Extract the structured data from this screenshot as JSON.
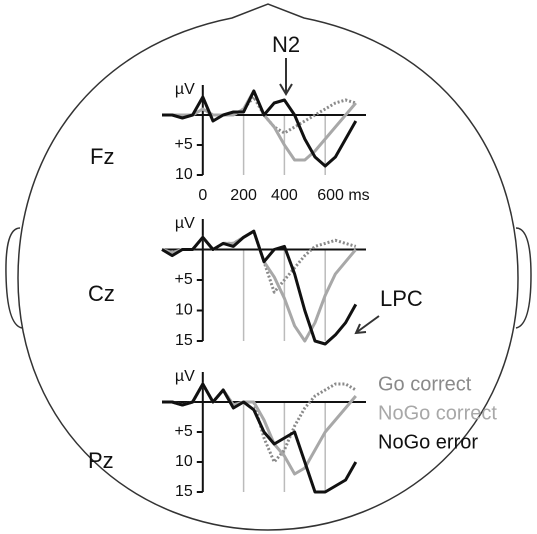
{
  "chart_data": [
    {
      "type": "line",
      "title": "Fz",
      "ylabel": "µV",
      "y_inverted": true,
      "annotation": "N2",
      "x": [
        -200,
        -150,
        -100,
        -50,
        0,
        50,
        100,
        150,
        200,
        250,
        300,
        350,
        400,
        450,
        500,
        550,
        600,
        650,
        700,
        750
      ],
      "xlim": [
        -200,
        800
      ],
      "ylim": [
        -5,
        10
      ],
      "xticks": [
        0,
        200,
        400,
        {
          "value": 600,
          "label": "600 ms"
        }
      ],
      "yticks": [
        {
          "value": 5,
          "label": "+5"
        },
        10
      ],
      "vlines": [
        200,
        400,
        600
      ],
      "series": [
        {
          "name": "Go correct",
          "color": "#8a8a8a",
          "dash": true,
          "values": [
            0,
            0,
            0,
            0,
            -1,
            0,
            0,
            0,
            -1,
            -3,
            0,
            2,
            3,
            2,
            1,
            0,
            -1,
            -2,
            -2.5,
            -2
          ]
        },
        {
          "name": "NoGo correct",
          "color": "#a8a8a8",
          "dash": false,
          "values": [
            0,
            0,
            0,
            0,
            -1,
            0,
            0,
            0,
            -1,
            -4,
            0,
            2,
            5,
            7.5,
            7.5,
            6,
            4,
            2,
            0,
            -2
          ]
        },
        {
          "name": "NoGo error",
          "color": "#111111",
          "dash": false,
          "values": [
            0,
            0,
            0.5,
            0,
            -3,
            1,
            0,
            -0.5,
            -0.5,
            -4,
            0,
            -2,
            -2.5,
            0,
            4,
            7,
            8.5,
            7,
            4,
            1
          ]
        }
      ]
    },
    {
      "type": "line",
      "title": "Cz",
      "ylabel": "µV",
      "y_inverted": true,
      "annotation": "LPC",
      "x": [
        -200,
        -150,
        -100,
        -50,
        0,
        50,
        100,
        150,
        200,
        250,
        300,
        350,
        400,
        450,
        500,
        550,
        600,
        650,
        700,
        750
      ],
      "xlim": [
        -200,
        800
      ],
      "ylim": [
        -5,
        15
      ],
      "yticks": [
        {
          "value": 5,
          "label": "+5"
        },
        10,
        15
      ],
      "vlines": [
        200,
        400,
        600
      ],
      "series": [
        {
          "color": "#8a8a8a",
          "dash": true,
          "values": [
            0,
            0.5,
            0,
            0,
            -2,
            0,
            -1,
            -1,
            -2,
            -3,
            2,
            7,
            5,
            3,
            1,
            -0.5,
            -1,
            -1.5,
            -1,
            -0.5
          ]
        },
        {
          "color": "#a8a8a8",
          "dash": false,
          "values": [
            0,
            0.5,
            0,
            0,
            -2,
            0,
            -1,
            -1,
            -2,
            -3,
            2,
            4.5,
            8,
            12.5,
            15,
            12,
            7.5,
            4,
            2,
            0
          ]
        },
        {
          "color": "#111111",
          "dash": false,
          "values": [
            0,
            1,
            0,
            0,
            -2,
            0,
            -1,
            -0.5,
            -2,
            -3,
            2,
            0,
            -0.5,
            4,
            10,
            15,
            15.5,
            14,
            12,
            9
          ]
        }
      ]
    },
    {
      "type": "line",
      "title": "Pz",
      "ylabel": "µV",
      "y_inverted": true,
      "x": [
        -200,
        -150,
        -100,
        -50,
        0,
        50,
        100,
        150,
        200,
        250,
        300,
        350,
        400,
        450,
        500,
        550,
        600,
        650,
        700,
        750
      ],
      "xlim": [
        -200,
        800
      ],
      "ylim": [
        -5,
        15
      ],
      "yticks": [
        {
          "value": 5,
          "label": "+5"
        },
        10,
        15
      ],
      "vlines": [
        200,
        400,
        600
      ],
      "series": [
        {
          "color": "#8a8a8a",
          "dash": true,
          "values": [
            0,
            0,
            0.5,
            0,
            -3,
            0,
            -2,
            0.5,
            0,
            0,
            6,
            10,
            8,
            4,
            1,
            -1,
            -2,
            -3,
            -3,
            -2
          ]
        },
        {
          "color": "#a8a8a8",
          "dash": false,
          "values": [
            0,
            0,
            0.5,
            0,
            -3,
            0,
            -2,
            0.5,
            0,
            0,
            3,
            7,
            9,
            12,
            11,
            8,
            5,
            3,
            1,
            -1
          ]
        },
        {
          "color": "#111111",
          "dash": false,
          "values": [
            0,
            0,
            0.5,
            0,
            -3,
            0,
            -2,
            1,
            0,
            1.3,
            5,
            7,
            6,
            5,
            10,
            15,
            15,
            14,
            13,
            10
          ]
        }
      ]
    }
  ]
}
